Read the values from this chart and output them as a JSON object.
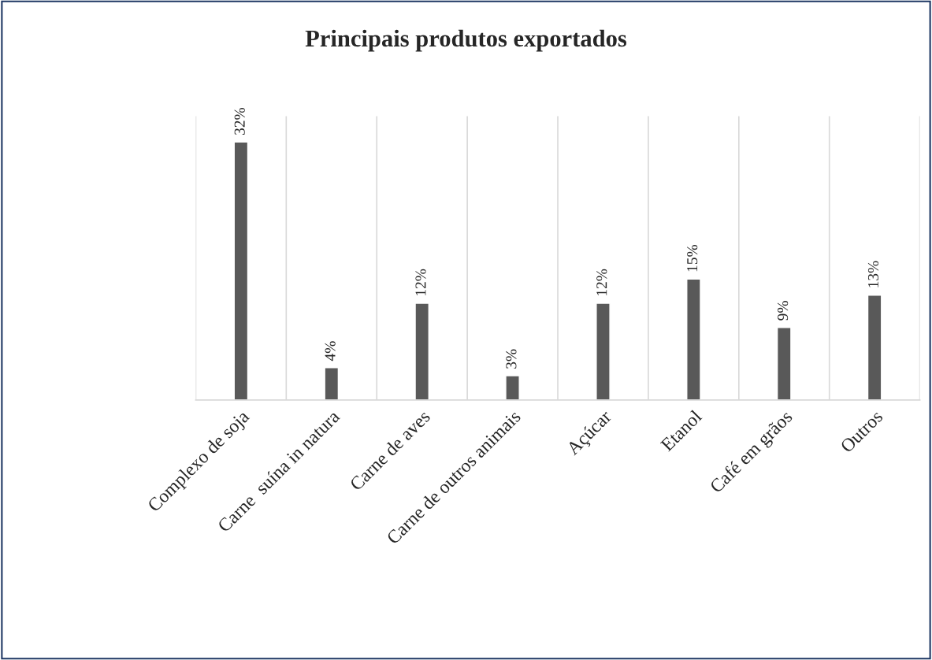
{
  "chart_data": {
    "type": "bar",
    "title": "Principais produtos exportados",
    "categories": [
      "Complexo de soja",
      "Carne  suína in natura",
      "Carne de aves",
      "Carne de outros animais",
      "Açúcar",
      "Etanol",
      "Café em grãos",
      "Outros"
    ],
    "values": [
      32,
      4,
      12,
      3,
      12,
      15,
      9,
      13
    ],
    "value_labels": [
      "32%",
      "4%",
      "12%",
      "3%",
      "12%",
      "15%",
      "9%",
      "13%"
    ],
    "color": "#595959",
    "grid": "x",
    "legend": false,
    "tick_labels": "x"
  }
}
